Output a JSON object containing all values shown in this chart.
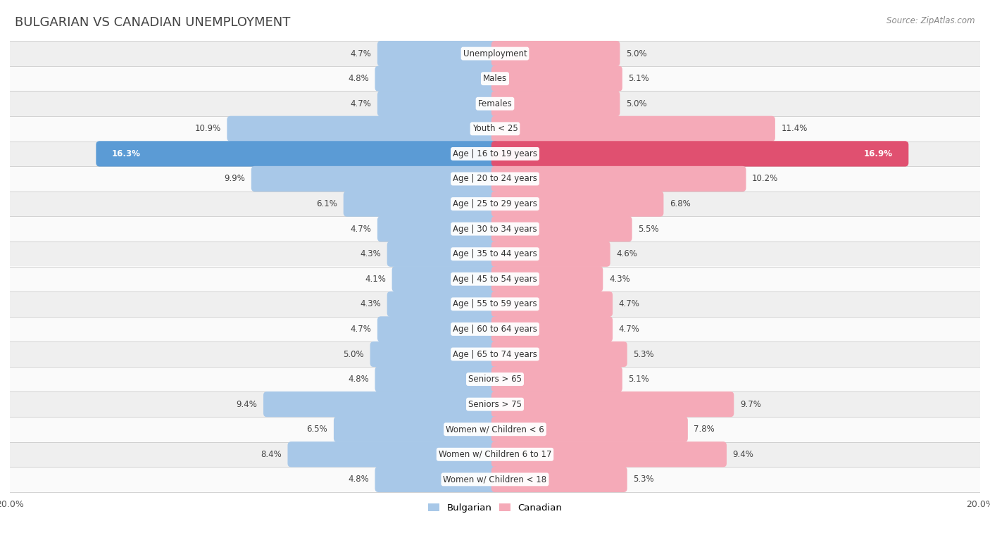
{
  "title": "BULGARIAN VS CANADIAN UNEMPLOYMENT",
  "source": "Source: ZipAtlas.com",
  "categories": [
    "Unemployment",
    "Males",
    "Females",
    "Youth < 25",
    "Age | 16 to 19 years",
    "Age | 20 to 24 years",
    "Age | 25 to 29 years",
    "Age | 30 to 34 years",
    "Age | 35 to 44 years",
    "Age | 45 to 54 years",
    "Age | 55 to 59 years",
    "Age | 60 to 64 years",
    "Age | 65 to 74 years",
    "Seniors > 65",
    "Seniors > 75",
    "Women w/ Children < 6",
    "Women w/ Children 6 to 17",
    "Women w/ Children < 18"
  ],
  "bulgarian": [
    4.7,
    4.8,
    4.7,
    10.9,
    16.3,
    9.9,
    6.1,
    4.7,
    4.3,
    4.1,
    4.3,
    4.7,
    5.0,
    4.8,
    9.4,
    6.5,
    8.4,
    4.8
  ],
  "canadian": [
    5.0,
    5.1,
    5.0,
    11.4,
    16.9,
    10.2,
    6.8,
    5.5,
    4.6,
    4.3,
    4.7,
    4.7,
    5.3,
    5.1,
    9.7,
    7.8,
    9.4,
    5.3
  ],
  "bulgarian_color": "#a8c8e8",
  "canadian_color": "#f5aab8",
  "bulgarian_highlight": "#5b9bd5",
  "canadian_highlight": "#e05070",
  "bg_row_even": "#efefef",
  "bg_row_odd": "#fafafa",
  "bar_height": 0.72,
  "xlim": 20.0,
  "title_fontsize": 13,
  "label_fontsize": 8.5,
  "value_fontsize": 8.5,
  "source_fontsize": 8.5
}
